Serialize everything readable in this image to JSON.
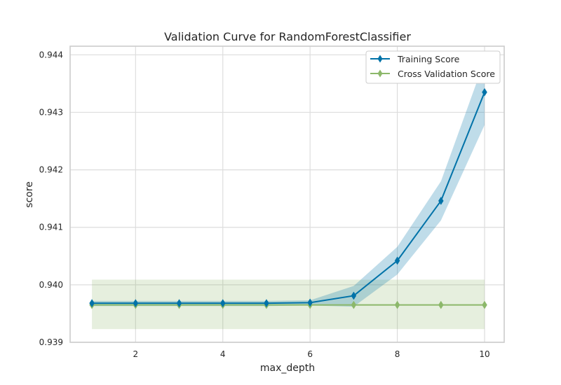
{
  "chart_data": {
    "type": "line",
    "title": "Validation Curve for RandomForestClassifier",
    "xlabel": "max_depth",
    "ylabel": "score",
    "xlim": [
      0.5,
      10.45
    ],
    "ylim": [
      0.939,
      0.94415
    ],
    "xticks": [
      2,
      4,
      6,
      8,
      10
    ],
    "yticks": [
      0.939,
      0.94,
      0.941,
      0.942,
      0.943,
      0.944
    ],
    "ytick_labels": [
      "0.939",
      "0.940",
      "0.941",
      "0.942",
      "0.943",
      "0.944"
    ],
    "grid": true,
    "legend_position": "top-right",
    "x": [
      1,
      2,
      3,
      4,
      5,
      6,
      7,
      8,
      9,
      10
    ],
    "series": [
      {
        "name": "Training Score",
        "color": "#0072a8",
        "band_color": "#0072a8",
        "values": [
          0.93968,
          0.93968,
          0.93968,
          0.93968,
          0.93968,
          0.93969,
          0.93981,
          0.94042,
          0.94146,
          0.94335
        ],
        "band_low": [
          0.93963,
          0.93963,
          0.93963,
          0.93963,
          0.93963,
          0.93964,
          0.93962,
          0.94018,
          0.94112,
          0.94278
        ],
        "band_high": [
          0.93972,
          0.93972,
          0.93972,
          0.93972,
          0.93972,
          0.93973,
          0.93998,
          0.94066,
          0.9418,
          0.9439
        ]
      },
      {
        "name": "Cross Validation Score",
        "color": "#8cb86a",
        "band_color": "#8cb86a",
        "values": [
          0.93965,
          0.93965,
          0.93965,
          0.93965,
          0.93965,
          0.93965,
          0.93965,
          0.93965,
          0.93965,
          0.93965
        ],
        "band_low": [
          0.93923,
          0.93923,
          0.93923,
          0.93923,
          0.93923,
          0.93923,
          0.93923,
          0.93923,
          0.93923,
          0.93923
        ],
        "band_high": [
          0.94009,
          0.94009,
          0.94009,
          0.94009,
          0.94009,
          0.94009,
          0.94009,
          0.94009,
          0.94009,
          0.94009
        ]
      }
    ]
  }
}
